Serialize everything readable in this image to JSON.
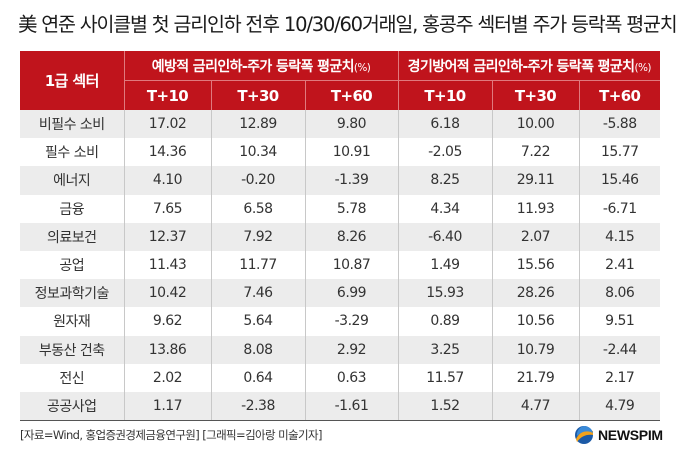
{
  "title": "美 연준 사이클별 첫 금리인하 전후 10/30/60거래일, 홍콩주 섹터별 주가 등락폭 평균치",
  "table": {
    "sector_header": "1급 섹터",
    "groups": [
      {
        "label": "예방적 금리인하-주가 등락폭 평균치",
        "unit": "(%)"
      },
      {
        "label": "경기방어적 금리인하-주가 등락폭 평균치",
        "unit": "(%)"
      }
    ],
    "sub_headers": [
      "T+10",
      "T+30",
      "T+60",
      "T+10",
      "T+30",
      "T+60"
    ],
    "rows": [
      {
        "sector": "비필수 소비",
        "values": [
          "17.02",
          "12.89",
          "9.80",
          "6.18",
          "10.00",
          "-5.88"
        ]
      },
      {
        "sector": "필수 소비",
        "values": [
          "14.36",
          "10.34",
          "10.91",
          "-2.05",
          "7.22",
          "15.77"
        ]
      },
      {
        "sector": "에너지",
        "values": [
          "4.10",
          "-0.20",
          "-1.39",
          "8.25",
          "29.11",
          "15.46"
        ]
      },
      {
        "sector": "금융",
        "values": [
          "7.65",
          "6.58",
          "5.78",
          "4.34",
          "11.93",
          "-6.71"
        ]
      },
      {
        "sector": "의료보건",
        "values": [
          "12.37",
          "7.92",
          "8.26",
          "-6.40",
          "2.07",
          "4.15"
        ]
      },
      {
        "sector": "공업",
        "values": [
          "11.43",
          "11.77",
          "10.87",
          "1.49",
          "15.56",
          "2.41"
        ]
      },
      {
        "sector": "정보과학기술",
        "values": [
          "10.42",
          "7.46",
          "6.99",
          "15.93",
          "28.26",
          "8.06"
        ]
      },
      {
        "sector": "원자재",
        "values": [
          "9.62",
          "5.64",
          "-3.29",
          "0.89",
          "10.56",
          "9.51"
        ]
      },
      {
        "sector": "부동산 건축",
        "values": [
          "13.86",
          "8.08",
          "2.92",
          "3.25",
          "10.79",
          "-2.44"
        ]
      },
      {
        "sector": "전신",
        "values": [
          "2.02",
          "0.64",
          "0.63",
          "11.57",
          "21.79",
          "2.17"
        ]
      },
      {
        "sector": "공공사업",
        "values": [
          "1.17",
          "-2.38",
          "-1.61",
          "1.52",
          "4.77",
          "4.79"
        ]
      }
    ]
  },
  "footer": {
    "source": "[자료=Wind, 홍업증권경제금융연구원] [그래픽=김아랑 미술기자]",
    "logo": "NEWSPIM"
  },
  "colors": {
    "header_red": "#c0141c",
    "row_stripe": "#ececec"
  },
  "chart_data": {
    "type": "table",
    "title": "美 연준 사이클별 첫 금리인하 전후 10/30/60거래일, 홍콩주 섹터별 주가 등락폭 평균치",
    "columns": [
      "1급 섹터",
      "예방적 T+10",
      "예방적 T+30",
      "예방적 T+60",
      "경기방어적 T+10",
      "경기방어적 T+30",
      "경기방어적 T+60"
    ],
    "unit": "%",
    "categories": [
      "비필수 소비",
      "필수 소비",
      "에너지",
      "금융",
      "의료보건",
      "공업",
      "정보과학기술",
      "원자재",
      "부동산 건축",
      "전신",
      "공공사업"
    ],
    "series": [
      {
        "name": "예방적 금리인하 T+10",
        "values": [
          17.02,
          14.36,
          4.1,
          7.65,
          12.37,
          11.43,
          10.42,
          9.62,
          13.86,
          2.02,
          1.17
        ]
      },
      {
        "name": "예방적 금리인하 T+30",
        "values": [
          12.89,
          10.34,
          -0.2,
          6.58,
          7.92,
          11.77,
          7.46,
          5.64,
          8.08,
          0.64,
          -2.38
        ]
      },
      {
        "name": "예방적 금리인하 T+60",
        "values": [
          9.8,
          10.91,
          -1.39,
          5.78,
          8.26,
          10.87,
          6.99,
          -3.29,
          2.92,
          0.63,
          -1.61
        ]
      },
      {
        "name": "경기방어적 금리인하 T+10",
        "values": [
          6.18,
          -2.05,
          8.25,
          4.34,
          -6.4,
          1.49,
          15.93,
          0.89,
          3.25,
          11.57,
          1.52
        ]
      },
      {
        "name": "경기방어적 금리인하 T+30",
        "values": [
          10.0,
          7.22,
          29.11,
          11.93,
          2.07,
          15.56,
          28.26,
          10.56,
          10.79,
          21.79,
          4.77
        ]
      },
      {
        "name": "경기방어적 금리인하 T+60",
        "values": [
          -5.88,
          15.77,
          15.46,
          -6.71,
          4.15,
          2.41,
          8.06,
          9.51,
          -2.44,
          2.17,
          4.79
        ]
      }
    ],
    "source": "[자료=Wind, 홍업증권경제금융연구원] [그래픽=김아랑 미술기자]"
  }
}
